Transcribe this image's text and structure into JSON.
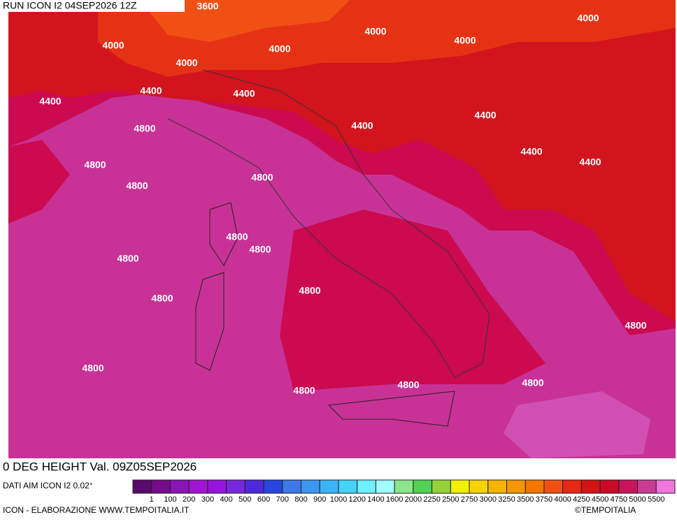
{
  "header": {
    "title": "RUN ICON I2 04SEP2026 12Z"
  },
  "map": {
    "contour_labels": [
      "3600",
      "4000",
      "4000",
      "4000",
      "4000",
      "4000",
      "4000",
      "4400",
      "4400",
      "4400",
      "4400",
      "4400",
      "4400",
      "4400",
      "4800",
      "4800",
      "4800",
      "4800",
      "4800",
      "4800",
      "4800",
      "4800",
      "4800",
      "4800",
      "4800",
      "4800",
      "4800",
      "4800"
    ]
  },
  "footer": {
    "title": "0 DEG HEIGHT Val. 09Z05SEP2026",
    "source": "DATI AIM ICON I2 0.02°",
    "credit": "ICON - ELABORAZIONE WWW.TEMPOITALIA.IT",
    "copyright": "©TEMPOITALIA"
  },
  "legend": {
    "labels": [
      "1",
      "100",
      "200",
      "300",
      "400",
      "500",
      "600",
      "700",
      "800",
      "900",
      "1000",
      "1200",
      "1400",
      "1600",
      "2000",
      "2250",
      "2500",
      "2750",
      "3000",
      "3250",
      "3500",
      "3750",
      "4000",
      "4250",
      "4500",
      "4750",
      "5000",
      "5500"
    ],
    "colors": [
      "#5a0a6e",
      "#780a8c",
      "#8c14b4",
      "#a014d2",
      "#9614dc",
      "#7828dc",
      "#5028dc",
      "#2846dc",
      "#3c78e6",
      "#3c96f0",
      "#3cb4f5",
      "#46d2fa",
      "#6ef0ff",
      "#a0ffff",
      "#8ce68c",
      "#50d250",
      "#96d23c",
      "#f0f000",
      "#f5d200",
      "#f5b400",
      "#f59600",
      "#f07800",
      "#f05014",
      "#e62814",
      "#d21414",
      "#c80a28",
      "#c8145a",
      "#c83c96",
      "#f078dc"
    ]
  }
}
